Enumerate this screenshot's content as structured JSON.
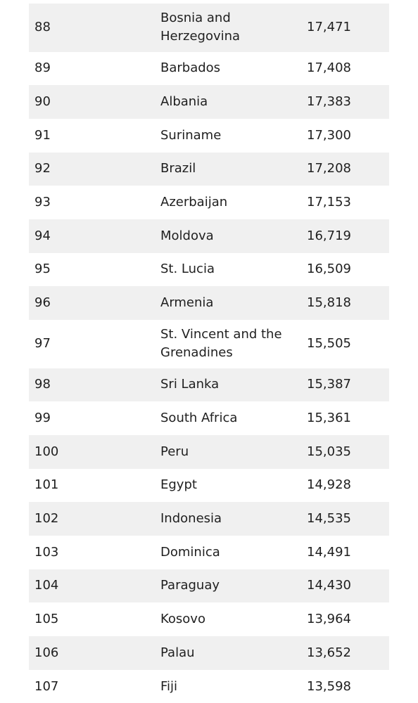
{
  "table": {
    "rows": [
      {
        "rank": "88",
        "country": "Bosnia and Herzegovina",
        "value": "17,471"
      },
      {
        "rank": "89",
        "country": "Barbados",
        "value": "17,408"
      },
      {
        "rank": "90",
        "country": "Albania",
        "value": "17,383"
      },
      {
        "rank": "91",
        "country": "Suriname",
        "value": "17,300"
      },
      {
        "rank": "92",
        "country": "Brazil",
        "value": "17,208"
      },
      {
        "rank": "93",
        "country": "Azerbaijan",
        "value": "17,153"
      },
      {
        "rank": "94",
        "country": "Moldova",
        "value": "16,719"
      },
      {
        "rank": "95",
        "country": "St. Lucia",
        "value": "16,509"
      },
      {
        "rank": "96",
        "country": "Armenia",
        "value": "15,818"
      },
      {
        "rank": "97",
        "country": "St. Vincent and the Grenadines",
        "value": "15,505"
      },
      {
        "rank": "98",
        "country": "Sri Lanka",
        "value": "15,387"
      },
      {
        "rank": "99",
        "country": "South Africa",
        "value": "15,361"
      },
      {
        "rank": "100",
        "country": "Peru",
        "value": "15,035"
      },
      {
        "rank": "101",
        "country": "Egypt",
        "value": "14,928"
      },
      {
        "rank": "102",
        "country": "Indonesia",
        "value": "14,535"
      },
      {
        "rank": "103",
        "country": "Dominica",
        "value": "14,491"
      },
      {
        "rank": "104",
        "country": "Paraguay",
        "value": "14,430"
      },
      {
        "rank": "105",
        "country": "Kosovo",
        "value": "13,964"
      },
      {
        "rank": "106",
        "country": "Palau",
        "value": "13,652"
      },
      {
        "rank": "107",
        "country": "Fiji",
        "value": "13,598"
      }
    ]
  }
}
